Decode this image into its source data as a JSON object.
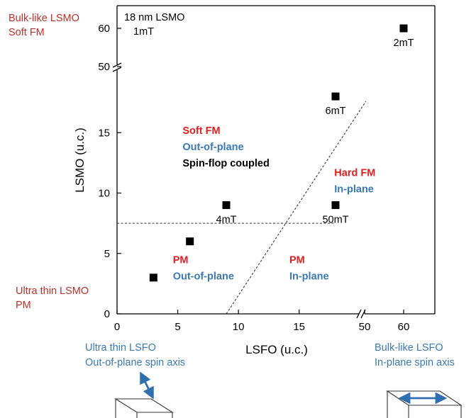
{
  "chart_data": {
    "type": "scatter",
    "title": "",
    "xlabel": "LSFO (u.c.)",
    "ylabel": "LSMO (u.c.)",
    "x_axis": {
      "broken": true,
      "segments": [
        {
          "range": [
            0,
            18
          ],
          "ticks": [
            0,
            5,
            10,
            15
          ]
        },
        {
          "range": [
            50,
            60
          ],
          "ticks": [
            50,
            60
          ]
        }
      ]
    },
    "y_axis": {
      "broken": true,
      "segments": [
        {
          "range": [
            0,
            20
          ],
          "ticks": [
            0,
            5,
            10,
            15
          ]
        },
        {
          "range": [
            50,
            62
          ],
          "ticks": [
            50,
            60
          ]
        }
      ]
    },
    "grid": false,
    "legend": "none",
    "marker_color": "#000000",
    "series": [
      {
        "points": [
          {
            "x": 3,
            "y": 3,
            "label": ""
          },
          {
            "x": 6,
            "y": 6,
            "label": ""
          },
          {
            "x": 9,
            "y": 9,
            "label": "4mT"
          },
          {
            "x": 18,
            "y": 18,
            "label": "6mT"
          },
          {
            "x": 18,
            "y": 9,
            "label": "50mT"
          },
          {
            "x": 60,
            "y": 60,
            "label": "2mT"
          }
        ]
      }
    ],
    "boundaries": [
      {
        "type": "horizontal",
        "y": 7.5,
        "x_range": [
          0,
          18
        ],
        "style": "dashed"
      },
      {
        "type": "line",
        "from": [
          9,
          0
        ],
        "to": [
          20.5,
          17.6
        ],
        "style": "dashed"
      }
    ],
    "inset_label": {
      "line1": "18 nm LSMO",
      "line2": "1mT"
    },
    "regions": [
      {
        "lines": [
          {
            "text": "Soft FM",
            "color": "#e02020"
          },
          {
            "text": "Out-of-plane",
            "color": "#3a79b3"
          },
          {
            "text": "Spin-flop coupled",
            "color": "#000000"
          }
        ],
        "anchor": [
          5.4,
          14.9
        ]
      },
      {
        "lines": [
          {
            "text": "Hard FM",
            "color": "#e02020"
          },
          {
            "text": "In-plane",
            "color": "#3a79b3"
          }
        ],
        "anchor": [
          17.9,
          11.4
        ]
      },
      {
        "lines": [
          {
            "text": "PM",
            "color": "#e02020"
          },
          {
            "text": "Out-of-plane",
            "color": "#3a79b3"
          }
        ],
        "anchor": [
          4.6,
          4.2
        ]
      },
      {
        "lines": [
          {
            "text": "PM",
            "color": "#e02020"
          },
          {
            "text": "In-plane",
            "color": "#3a79b3"
          }
        ],
        "anchor": [
          14.2,
          4.2
        ]
      }
    ],
    "side_labels": {
      "top_left": {
        "lines": [
          "Bulk-like LSMO",
          "Soft FM"
        ],
        "color": "#c0302a"
      },
      "bottom_left": {
        "lines": [
          "Ultra thin LSMO",
          "PM"
        ],
        "color": "#c0302a"
      },
      "below_left": {
        "lines": [
          "Ultra thin LSFO",
          "Out-of-plane spin axis"
        ],
        "color": "#3a79b3"
      },
      "below_right": {
        "lines": [
          "Bulk-like LSFO",
          "In-plane spin axis"
        ],
        "color": "#3a79b3"
      }
    },
    "colors": {
      "red": "#e02020",
      "blue": "#3a79b3",
      "side_red": "#c0302a",
      "side_blue": "#3a79b3",
      "arrow_blue": "#2f6fb0"
    }
  }
}
